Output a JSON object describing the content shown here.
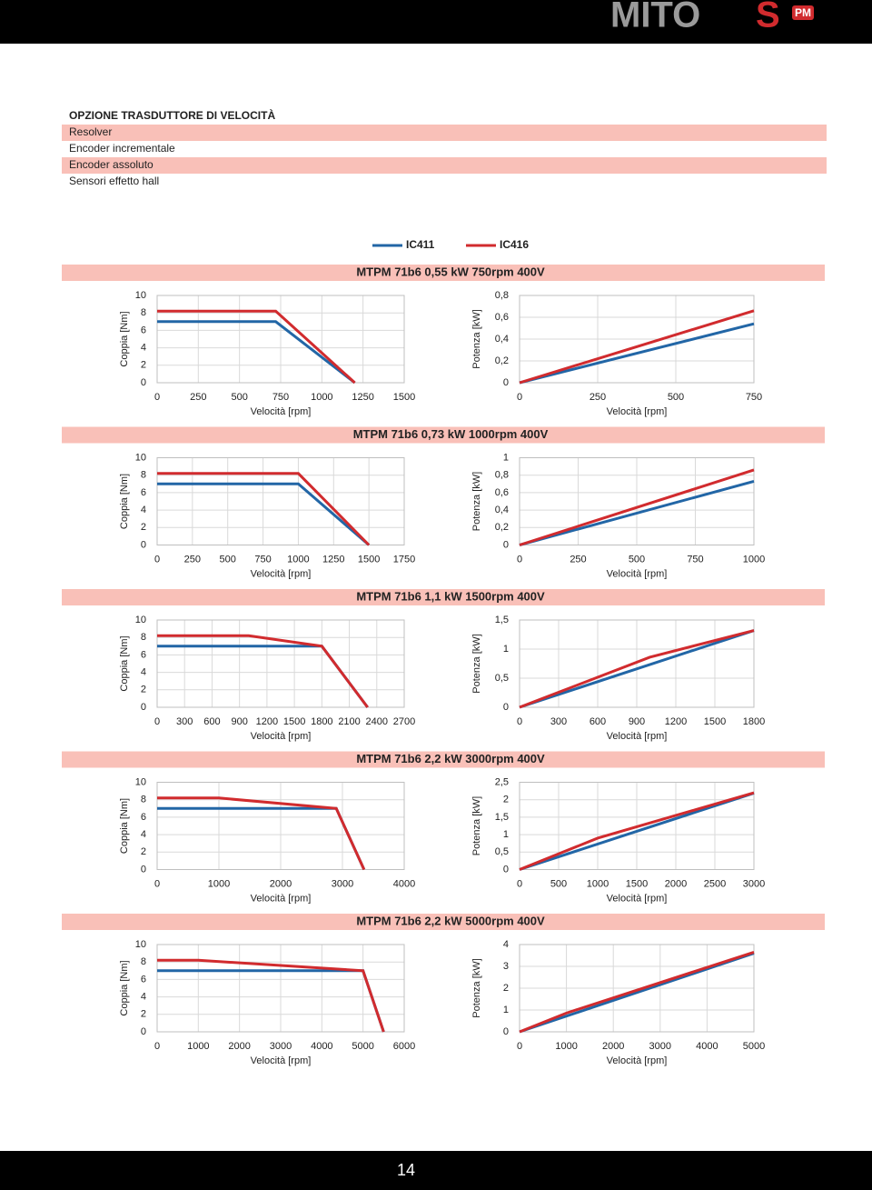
{
  "header": {
    "logo": "MITO",
    "logo_accent": "S",
    "badge": "PM"
  },
  "options": {
    "title": "OPZIONE TRASDUTTORE DI VELOCITÀ",
    "rows": [
      "Resolver",
      "Encoder incrementale",
      "Encoder assoluto",
      "Sensori effetto hall"
    ]
  },
  "sections": [
    {
      "title": "MTPM 71b6 0,55 kW 750rpm 400V"
    },
    {
      "title": "MTPM 71b6 0,73 kW 1000rpm 400V"
    },
    {
      "title": "MTPM 71b6 1,1 kW 1500rpm 400V"
    },
    {
      "title": "MTPM 71b6 2,2 kW 3000rpm 400V"
    },
    {
      "title": "MTPM 71b6 2,2 kW 5000rpm 400V"
    }
  ],
  "chart_data": [
    {
      "type": "line",
      "xlabel": "Velocità [rpm]",
      "ylabel": "Coppia [Nm]",
      "xlim": [
        0,
        1500
      ],
      "xticks": [
        0,
        250,
        500,
        750,
        1000,
        1250,
        1500
      ],
      "ylim": [
        0,
        10
      ],
      "yticks": [
        0,
        2,
        4,
        6,
        8,
        10
      ],
      "grid": true,
      "series": [
        {
          "name": "IC411",
          "color": "#2266a6",
          "x": [
            0,
            720,
            1200
          ],
          "values": [
            7,
            7,
            0
          ]
        },
        {
          "name": "IC416",
          "color": "#d12b2e",
          "x": [
            0,
            720,
            1200
          ],
          "values": [
            8.2,
            8.2,
            0
          ]
        }
      ]
    },
    {
      "type": "line",
      "xlabel": "Velocità [rpm]",
      "ylabel": "Potenza [kW]",
      "xlim": [
        0,
        750
      ],
      "xticks": [
        0,
        250,
        500,
        750
      ],
      "ylim": [
        0,
        0.8
      ],
      "yticks": [
        0,
        {
          "value": 0.2,
          "label": "0,2"
        },
        {
          "value": 0.4,
          "label": "0,4"
        },
        {
          "value": 0.6,
          "label": "0,6"
        },
        {
          "value": 0.8,
          "label": "0,8"
        }
      ],
      "grid": true,
      "series": [
        {
          "name": "IC411",
          "color": "#2266a6",
          "x": [
            0,
            750
          ],
          "values": [
            0,
            0.54
          ]
        },
        {
          "name": "IC416",
          "color": "#d12b2e",
          "x": [
            0,
            750
          ],
          "values": [
            0,
            0.66
          ]
        }
      ]
    },
    {
      "type": "line",
      "xlabel": "Velocità [rpm]",
      "ylabel": "Coppia [Nm]",
      "xlim": [
        0,
        1750
      ],
      "xticks": [
        0,
        250,
        500,
        750,
        1000,
        1250,
        1500,
        1750
      ],
      "ylim": [
        0,
        10
      ],
      "yticks": [
        0,
        2,
        4,
        6,
        8,
        10
      ],
      "grid": true,
      "series": [
        {
          "name": "IC411",
          "color": "#2266a6",
          "x": [
            0,
            1000,
            1500
          ],
          "values": [
            7,
            7,
            0
          ]
        },
        {
          "name": "IC416",
          "color": "#d12b2e",
          "x": [
            0,
            1000,
            1500
          ],
          "values": [
            8.2,
            8.2,
            0
          ]
        }
      ]
    },
    {
      "type": "line",
      "xlabel": "Velocità [rpm]",
      "ylabel": "Potenza [kW]",
      "xlim": [
        0,
        1000
      ],
      "xticks": [
        0,
        250,
        500,
        750,
        1000
      ],
      "ylim": [
        0,
        1
      ],
      "yticks": [
        0,
        {
          "value": 0.2,
          "label": "0,2"
        },
        {
          "value": 0.4,
          "label": "0,4"
        },
        {
          "value": 0.6,
          "label": "0,6"
        },
        {
          "value": 0.8,
          "label": "0,8"
        },
        1
      ],
      "grid": true,
      "series": [
        {
          "name": "IC411",
          "color": "#2266a6",
          "x": [
            0,
            1000
          ],
          "values": [
            0,
            0.73
          ]
        },
        {
          "name": "IC416",
          "color": "#d12b2e",
          "x": [
            0,
            1000
          ],
          "values": [
            0,
            0.86
          ]
        }
      ]
    },
    {
      "type": "line",
      "xlabel": "Velocità [rpm]",
      "ylabel": "Coppia [Nm]",
      "xlim": [
        0,
        2700
      ],
      "xticks": [
        0,
        300,
        600,
        900,
        1200,
        1500,
        1800,
        2100,
        2400,
        2700
      ],
      "ylim": [
        0,
        10
      ],
      "yticks": [
        0,
        2,
        4,
        6,
        8,
        10
      ],
      "grid": true,
      "series": [
        {
          "name": "IC411",
          "color": "#2266a6",
          "x": [
            0,
            1800,
            2300
          ],
          "values": [
            7,
            7,
            0
          ]
        },
        {
          "name": "IC416",
          "color": "#d12b2e",
          "x": [
            0,
            1000,
            1800,
            2300
          ],
          "values": [
            8.2,
            8.2,
            7,
            0
          ]
        }
      ]
    },
    {
      "type": "line",
      "xlabel": "Velocità [rpm]",
      "ylabel": "Potenza [kW]",
      "xlim": [
        0,
        1800
      ],
      "xticks": [
        0,
        300,
        600,
        900,
        1200,
        1500,
        1800
      ],
      "ylim": [
        0,
        1.5
      ],
      "yticks": [
        0,
        {
          "value": 0.5,
          "label": "0,5"
        },
        1,
        {
          "value": 1.5,
          "label": "1,5"
        }
      ],
      "grid": true,
      "series": [
        {
          "name": "IC411",
          "color": "#2266a6",
          "x": [
            0,
            1800
          ],
          "values": [
            0,
            1.32
          ]
        },
        {
          "name": "IC416",
          "color": "#d12b2e",
          "x": [
            0,
            1000,
            1800
          ],
          "values": [
            0,
            0.86,
            1.32
          ]
        }
      ]
    },
    {
      "type": "line",
      "xlabel": "Velocità [rpm]",
      "ylabel": "Coppia [Nm]",
      "xlim": [
        0,
        4000
      ],
      "xticks": [
        0,
        1000,
        2000,
        3000,
        4000
      ],
      "ylim": [
        0,
        10
      ],
      "yticks": [
        0,
        2,
        4,
        6,
        8,
        10
      ],
      "grid": true,
      "series": [
        {
          "name": "IC411",
          "color": "#2266a6",
          "x": [
            0,
            2900,
            3350
          ],
          "values": [
            7,
            7,
            0
          ]
        },
        {
          "name": "IC416",
          "color": "#d12b2e",
          "x": [
            0,
            1000,
            2900,
            3350
          ],
          "values": [
            8.2,
            8.2,
            7,
            0
          ]
        }
      ]
    },
    {
      "type": "line",
      "xlabel": "Velocità [rpm]",
      "ylabel": "Potenza [kW]",
      "xlim": [
        0,
        3000
      ],
      "xticks": [
        0,
        500,
        1000,
        1500,
        2000,
        2500,
        3000
      ],
      "ylim": [
        0,
        2.5
      ],
      "yticks": [
        0,
        {
          "value": 0.5,
          "label": "0,5"
        },
        1,
        {
          "value": 1.5,
          "label": "1,5"
        },
        2,
        {
          "value": 2.5,
          "label": "2,5"
        }
      ],
      "grid": true,
      "series": [
        {
          "name": "IC411",
          "color": "#2266a6",
          "x": [
            0,
            3000
          ],
          "values": [
            0,
            2.19
          ]
        },
        {
          "name": "IC416",
          "color": "#d12b2e",
          "x": [
            0,
            1000,
            3000
          ],
          "values": [
            0,
            0.9,
            2.2
          ]
        }
      ]
    },
    {
      "type": "line",
      "xlabel": "Velocità [rpm]",
      "ylabel": "Coppia [Nm]",
      "xlim": [
        0,
        6000
      ],
      "xticks": [
        0,
        1000,
        2000,
        3000,
        4000,
        5000,
        6000
      ],
      "ylim": [
        0,
        10
      ],
      "yticks": [
        0,
        2,
        4,
        6,
        8,
        10
      ],
      "grid": true,
      "series": [
        {
          "name": "IC411",
          "color": "#2266a6",
          "x": [
            0,
            5000,
            5500
          ],
          "values": [
            7,
            7,
            0
          ]
        },
        {
          "name": "IC416",
          "color": "#d12b2e",
          "x": [
            0,
            1000,
            5000,
            5500
          ],
          "values": [
            8.2,
            8.2,
            7,
            0
          ]
        }
      ]
    },
    {
      "type": "line",
      "xlabel": "Velocità [rpm]",
      "ylabel": "Potenza [kW]",
      "xlim": [
        0,
        5000
      ],
      "xticks": [
        0,
        1000,
        2000,
        3000,
        4000,
        5000
      ],
      "ylim": [
        0,
        4
      ],
      "yticks": [
        0,
        1,
        2,
        3,
        4
      ],
      "grid": true,
      "series": [
        {
          "name": "IC411",
          "color": "#2266a6",
          "x": [
            0,
            5000
          ],
          "values": [
            0,
            3.6
          ]
        },
        {
          "name": "IC416",
          "color": "#d12b2e",
          "x": [
            0,
            1000,
            5000
          ],
          "values": [
            0,
            0.86,
            3.65
          ]
        }
      ]
    }
  ],
  "page_number": "14"
}
